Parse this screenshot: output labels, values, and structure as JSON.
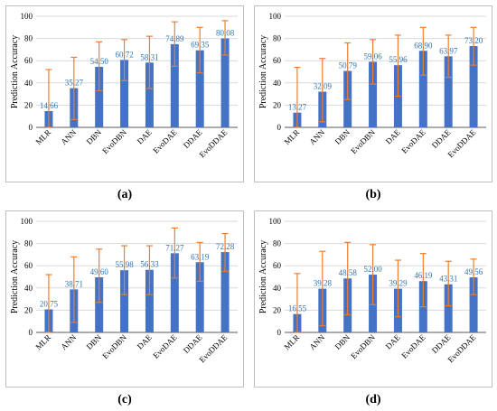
{
  "colors": {
    "bar": "#4472c4",
    "error": "#ed7d31",
    "label": "#2e75b6",
    "axis": "#595959",
    "grid": "#d9d9d9"
  },
  "chart_data": [
    {
      "type": "bar",
      "caption": "(a)",
      "ylabel": "Prediction Accuracy",
      "ylim": [
        0,
        100
      ],
      "yticks": [
        "0",
        "20",
        "40",
        "60",
        "80",
        "100"
      ],
      "categories": [
        "MLR",
        "ANN",
        "DBN",
        "EvoDBN",
        "DAE",
        "EvoDAE",
        "DDAE",
        "EvoDDAE"
      ],
      "values": [
        14.66,
        35.27,
        54.5,
        60.72,
        58.31,
        74.89,
        69.35,
        80.08
      ],
      "value_labels": [
        "14.66",
        "35.27",
        "54.50",
        "60.72",
        "58.31",
        "74.89",
        "69.35",
        "80.08"
      ],
      "error_low": [
        0,
        7,
        33,
        42,
        35,
        55,
        49,
        65
      ],
      "error_high": [
        52,
        63,
        77,
        79,
        82,
        95,
        90,
        96
      ]
    },
    {
      "type": "bar",
      "caption": "(b)",
      "ylabel": "Prediction Accuracy",
      "ylim": [
        0,
        100
      ],
      "yticks": [
        "0",
        "20",
        "40",
        "60",
        "80",
        "100"
      ],
      "categories": [
        "MLR",
        "ANN",
        "DBN",
        "EvoDBN",
        "DAE",
        "EvoDAE",
        "DDAE",
        "EvoDDAE"
      ],
      "values": [
        13.27,
        32.09,
        50.79,
        59.06,
        55.96,
        68.9,
        63.97,
        73.2
      ],
      "value_labels": [
        "13.27",
        "32.09",
        "50.79",
        "59.06",
        "55.96",
        "68.90",
        "63.97",
        "73.20"
      ],
      "error_low": [
        0,
        5,
        25,
        39,
        28,
        47,
        45,
        56
      ],
      "error_high": [
        54,
        62,
        76,
        79,
        83,
        90,
        83,
        90
      ]
    },
    {
      "type": "bar",
      "caption": "(c)",
      "ylabel": "Prediction Accuracy",
      "ylim": [
        0,
        100
      ],
      "yticks": [
        "0",
        "20",
        "40",
        "60",
        "80",
        "100"
      ],
      "categories": [
        "MLR",
        "ANN",
        "DBN",
        "EvoDBN",
        "DAE",
        "EvoDAE",
        "DDAE",
        "EvoDDAE"
      ],
      "values": [
        20.75,
        38.71,
        49.6,
        55.98,
        56.33,
        71.27,
        63.19,
        72.28
      ],
      "value_labels": [
        "20.75",
        "38.71",
        "49.60",
        "55.98",
        "56.33",
        "71.27",
        "63.19",
        "72.28"
      ],
      "error_low": [
        0,
        9,
        27,
        34,
        34,
        49,
        46,
        55
      ],
      "error_high": [
        52,
        68,
        75,
        78,
        78,
        94,
        81,
        89
      ]
    },
    {
      "type": "bar",
      "caption": "(d)",
      "ylabel": "Prediction Accuracy",
      "ylim": [
        0,
        100
      ],
      "yticks": [
        "0",
        "20",
        "40",
        "60",
        "80",
        "100"
      ],
      "categories": [
        "MLR",
        "ANN",
        "DBN",
        "EvoDBN",
        "DAE",
        "EvoDAE",
        "DDAE",
        "EvoDDAE"
      ],
      "values": [
        16.55,
        39.28,
        48.58,
        52.0,
        39.29,
        46.19,
        43.31,
        49.56
      ],
      "value_labels": [
        "16.55",
        "39.28",
        "48.58",
        "52.00",
        "39.29",
        "46.19",
        "43.31",
        "49.56"
      ],
      "error_low": [
        0,
        6,
        16,
        25,
        14,
        23,
        24,
        34
      ],
      "error_high": [
        53,
        73,
        81,
        79,
        65,
        71,
        64,
        66
      ]
    }
  ]
}
